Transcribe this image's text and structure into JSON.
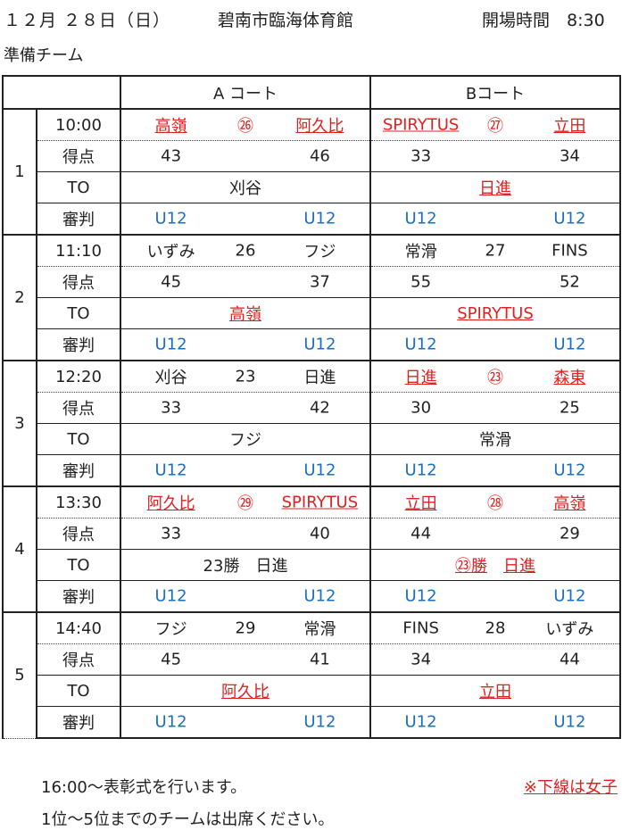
{
  "header": {
    "date": "１２月 ２８日（日）",
    "venue": "碧南市臨海体育館",
    "open_label": "開場時間　8:30"
  },
  "subtitle": "準備チーム",
  "columns": {
    "a": "A コート",
    "b": "Bコート"
  },
  "row_labels": {
    "score": "得点",
    "to": "TO",
    "ref": "審判"
  },
  "blocks": [
    {
      "num": "1",
      "time": "10:00",
      "a": {
        "team1": "高嶺",
        "game": "㉖",
        "team2": "阿久比",
        "score1": "43",
        "score2": "46",
        "to": "刈谷",
        "ref1": "U12",
        "ref2": "U12"
      },
      "b": {
        "team1": "SPIRYTUS",
        "game": "㉗",
        "team2": "立田",
        "score1": "33",
        "score2": "34",
        "to": "日進",
        "ref1": "U12",
        "ref2": "U12"
      }
    },
    {
      "num": "2",
      "time": "11:10",
      "a": {
        "team1": "いずみ",
        "game": "26",
        "team2": "フジ",
        "score1": "45",
        "score2": "37",
        "to": "高嶺",
        "ref1": "U12",
        "ref2": "U12"
      },
      "b": {
        "team1": "常滑",
        "game": "27",
        "team2": "FINS",
        "score1": "55",
        "score2": "52",
        "to": "SPIRYTUS",
        "ref1": "U12",
        "ref2": "U12"
      }
    },
    {
      "num": "3",
      "time": "12:20",
      "a": {
        "team1": "刈谷",
        "game": "23",
        "team2": "日進",
        "score1": "33",
        "score2": "42",
        "to": "フジ",
        "ref1": "U12",
        "ref2": "U12"
      },
      "b": {
        "team1": "日進",
        "game": "㉓",
        "team2": "森東",
        "score1": "30",
        "score2": "25",
        "to": "常滑",
        "ref1": "U12",
        "ref2": "U12"
      }
    },
    {
      "num": "4",
      "time": "13:30",
      "a": {
        "team1": "阿久比",
        "game": "㉙",
        "team2": "SPIRYTUS",
        "score1": "33",
        "score2": "40",
        "to": "23勝　日進",
        "ref1": "U12",
        "ref2": "U12"
      },
      "b": {
        "team1": "立田",
        "game": "㉘",
        "team2": "高嶺",
        "score1": "44",
        "score2": "29",
        "to_prefix": "㉓勝",
        "to": "日進",
        "ref1": "U12",
        "ref2": "U12"
      }
    },
    {
      "num": "5",
      "time": "14:40",
      "a": {
        "team1": "フジ",
        "game": "29",
        "team2": "常滑",
        "score1": "45",
        "score2": "41",
        "to": "阿久比",
        "ref1": "U12",
        "ref2": "U12"
      },
      "b": {
        "team1": "FINS",
        "game": "28",
        "team2": "いずみ",
        "score1": "34",
        "score2": "44",
        "to": "立田",
        "ref1": "U12",
        "ref2": "U12"
      }
    }
  ],
  "footer": {
    "line1": "16:00～表彰式を行います。",
    "note": "※下線は女子",
    "line2": "1位～5位までのチームは出席ください。"
  },
  "colors": {
    "female_team": "#e02020",
    "referee": "#1a6fc2",
    "text": "#222222"
  }
}
